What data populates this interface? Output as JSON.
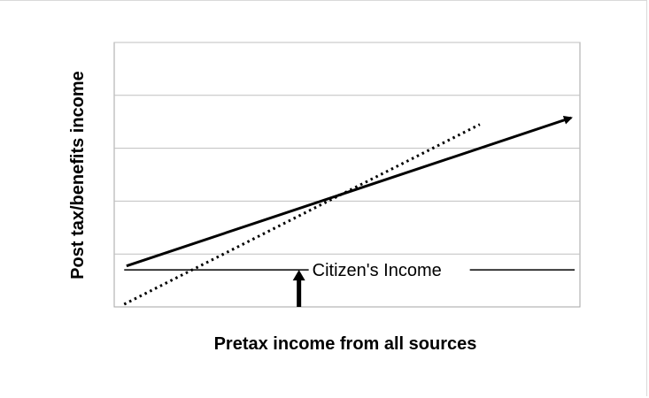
{
  "chart_data": {
    "type": "line",
    "title": "",
    "xlabel": "Pretax income from all sources",
    "ylabel": "Post tax/benefits income",
    "xlim": [
      0,
      100
    ],
    "ylim": [
      0,
      100
    ],
    "grid": true,
    "y_gridlines": [
      20,
      40,
      60,
      80,
      100
    ],
    "series": [
      {
        "style": "solid-arrow",
        "x": [
          1.5,
          100
        ],
        "y": [
          15.5,
          71.5
        ],
        "color": "#000000"
      },
      {
        "style": "dotted",
        "x": [
          1,
          78.5
        ],
        "y": [
          1,
          69
        ]
      },
      {
        "style": "solid-hline",
        "x": [
          1,
          100
        ],
        "y": [
          14,
          14
        ]
      }
    ],
    "annotations": [
      {
        "text": "Citizen's Income",
        "x": 41,
        "y": 14
      }
    ],
    "arrow_up": {
      "x": 41,
      "y_from": 0,
      "y_to": 14
    }
  }
}
